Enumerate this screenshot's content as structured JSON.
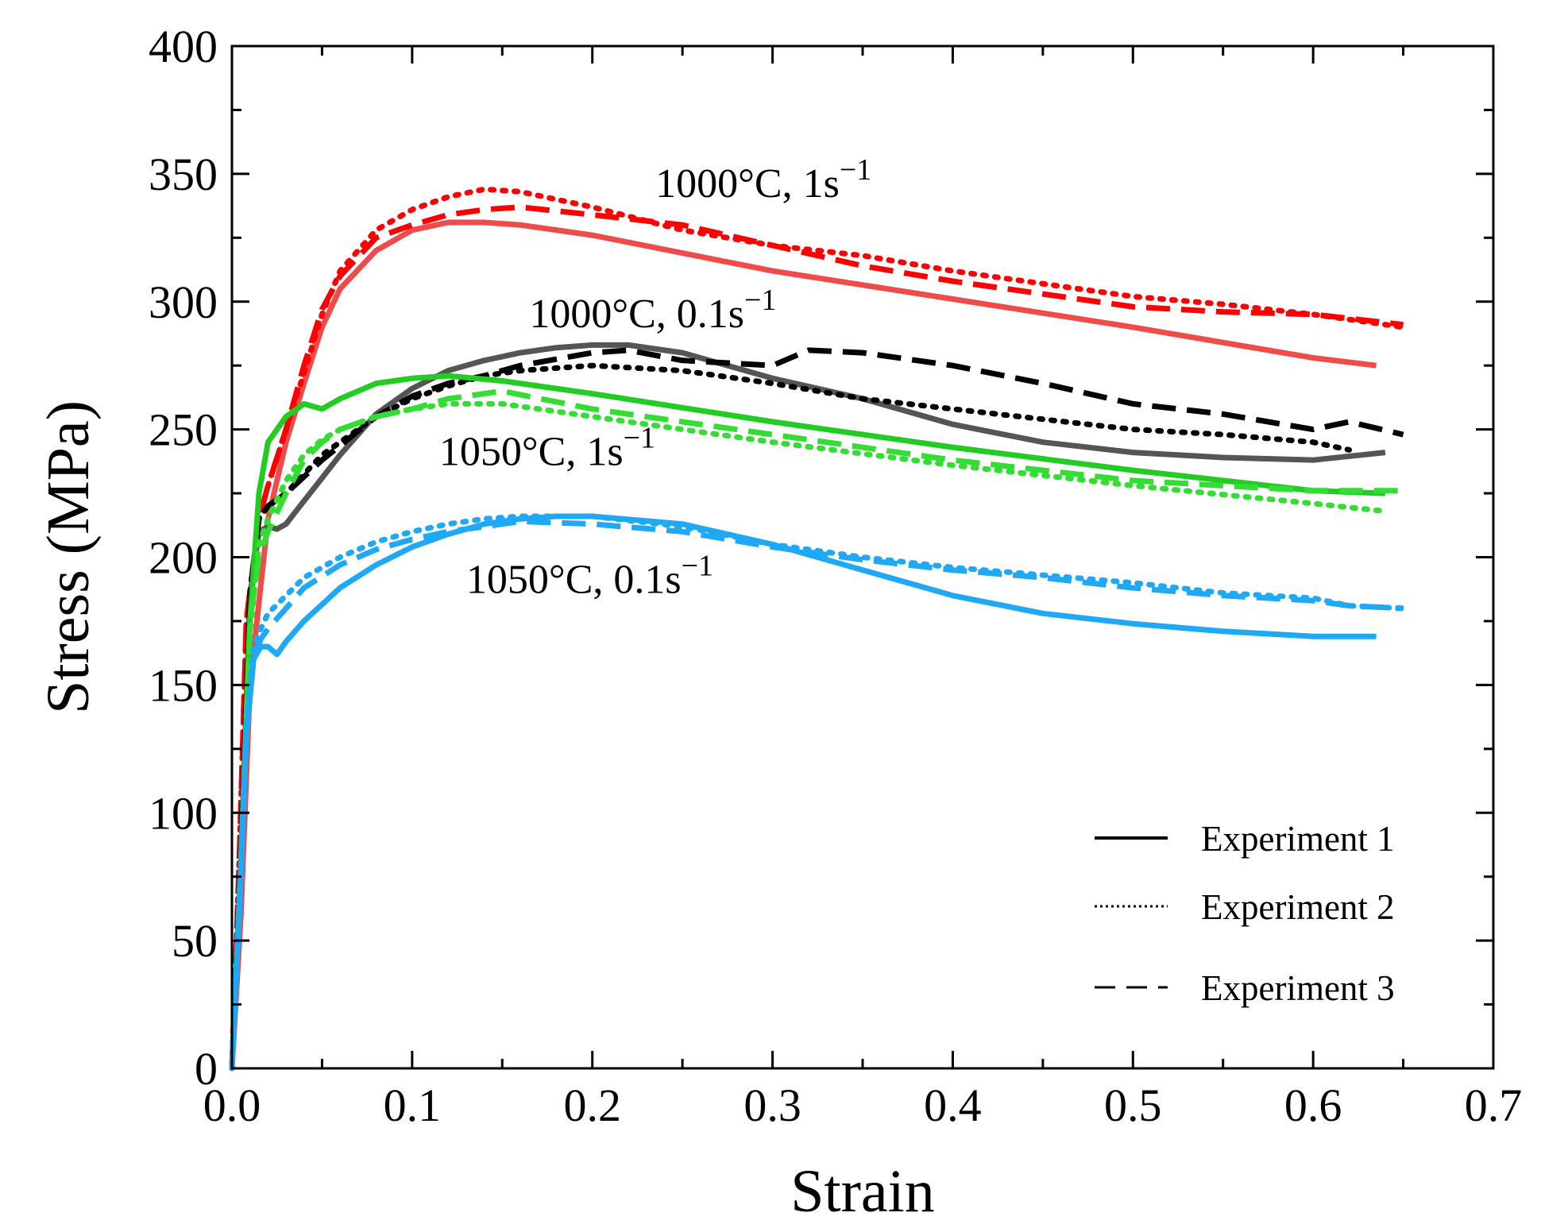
{
  "chart_data": {
    "type": "line",
    "title": "",
    "xlabel": "Strain",
    "ylabel": "Stress (MPa)",
    "xlim": [
      0,
      0.7
    ],
    "ylim": [
      0,
      400
    ],
    "x_ticks": [
      "0.0",
      "0.1",
      "0.2",
      "0.3",
      "0.4",
      "0.5",
      "0.6",
      "0.7"
    ],
    "y_ticks": [
      "0",
      "50",
      "100",
      "150",
      "200",
      "250",
      "300",
      "350",
      "400"
    ],
    "grid": false,
    "legend_position": "bottom-right",
    "legend": [
      {
        "label": "Experiment 1",
        "style": "solid"
      },
      {
        "label": "Experiment 2",
        "style": "dotted"
      },
      {
        "label": "Experiment 3",
        "style": "dashed"
      }
    ],
    "annotations": [
      {
        "base": "1000°C, 1s",
        "sup": "−1",
        "x": 0.235,
        "y": 341
      },
      {
        "base": "1000°C, 0.1s",
        "sup": "−1",
        "x": 0.165,
        "y": 290
      },
      {
        "base": "1050°C, 1s",
        "sup": "−1",
        "x": 0.115,
        "y": 236
      },
      {
        "base": "1050°C, 0.1s",
        "sup": "−1",
        "x": 0.13,
        "y": 186
      }
    ],
    "series": [
      {
        "group": "1000°C, 1s−1",
        "experiment": 1,
        "color": "#ef4b4b",
        "style": "solid",
        "x": [
          0,
          0.005,
          0.01,
          0.02,
          0.03,
          0.04,
          0.05,
          0.06,
          0.08,
          0.1,
          0.12,
          0.14,
          0.16,
          0.2,
          0.3,
          0.4,
          0.5,
          0.6,
          0.635
        ],
        "y": [
          0,
          60,
          150,
          215,
          245,
          268,
          290,
          305,
          320,
          328,
          331,
          331,
          330,
          326,
          312,
          301,
          290,
          278,
          275
        ]
      },
      {
        "group": "1000°C, 1s−1",
        "experiment": 2,
        "color": "#ff0000",
        "style": "dotted",
        "x": [
          0,
          0.004,
          0.008,
          0.015,
          0.02,
          0.03,
          0.04,
          0.05,
          0.06,
          0.08,
          0.1,
          0.12,
          0.14,
          0.16,
          0.2,
          0.25,
          0.3,
          0.35,
          0.4,
          0.5,
          0.55,
          0.6,
          0.65
        ],
        "y": [
          0,
          80,
          175,
          215,
          228,
          250,
          272,
          295,
          312,
          328,
          336,
          341,
          344,
          343,
          337,
          328,
          322,
          318,
          312,
          302,
          299,
          295,
          290
        ]
      },
      {
        "group": "1000°C, 1s−1",
        "experiment": 3,
        "color": "#ff0000",
        "style": "dashed",
        "x": [
          0,
          0.004,
          0.008,
          0.015,
          0.02,
          0.03,
          0.04,
          0.05,
          0.06,
          0.08,
          0.1,
          0.12,
          0.14,
          0.16,
          0.2,
          0.25,
          0.3,
          0.35,
          0.4,
          0.5,
          0.55,
          0.6,
          0.65
        ],
        "y": [
          0,
          80,
          175,
          215,
          228,
          250,
          275,
          297,
          310,
          325,
          330,
          334,
          336,
          337,
          334,
          330,
          322,
          314,
          308,
          298,
          296,
          295,
          291
        ]
      },
      {
        "group": "1000°C, 0.1s−1",
        "experiment": 1,
        "color": "#555555",
        "style": "solid",
        "x": [
          0,
          0.005,
          0.01,
          0.015,
          0.02,
          0.025,
          0.03,
          0.04,
          0.06,
          0.08,
          0.1,
          0.12,
          0.14,
          0.16,
          0.18,
          0.2,
          0.22,
          0.25,
          0.3,
          0.35,
          0.4,
          0.45,
          0.5,
          0.55,
          0.6,
          0.64
        ],
        "y": [
          0,
          80,
          185,
          210,
          212,
          211,
          213,
          222,
          240,
          256,
          266,
          273,
          277,
          280,
          282,
          283,
          283,
          280,
          270,
          262,
          252,
          245,
          241,
          239,
          238,
          241
        ]
      },
      {
        "group": "1000°C, 0.1s−1",
        "experiment": 2,
        "color": "#000000",
        "style": "dotted",
        "x": [
          0,
          0.005,
          0.01,
          0.015,
          0.02,
          0.03,
          0.05,
          0.08,
          0.1,
          0.12,
          0.14,
          0.16,
          0.2,
          0.25,
          0.3,
          0.35,
          0.4,
          0.45,
          0.5,
          0.55,
          0.6,
          0.62
        ],
        "y": [
          0,
          85,
          185,
          215,
          220,
          225,
          240,
          255,
          262,
          267,
          271,
          273,
          275,
          273,
          268,
          262,
          258,
          254,
          250,
          248,
          245,
          242
        ]
      },
      {
        "group": "1000°C, 0.1s−1",
        "experiment": 3,
        "color": "#000000",
        "style": "dashed",
        "x": [
          0,
          0.005,
          0.01,
          0.015,
          0.02,
          0.03,
          0.05,
          0.08,
          0.1,
          0.12,
          0.14,
          0.16,
          0.2,
          0.22,
          0.25,
          0.3,
          0.32,
          0.35,
          0.4,
          0.45,
          0.5,
          0.55,
          0.6,
          0.62,
          0.65
        ],
        "y": [
          0,
          85,
          185,
          215,
          220,
          225,
          238,
          255,
          263,
          268,
          271,
          275,
          280,
          281,
          277,
          275,
          281,
          280,
          275,
          268,
          260,
          256,
          250,
          253,
          248
        ]
      },
      {
        "group": "1050°C, 1s−1",
        "experiment": 1,
        "color": "#22cc22",
        "style": "solid",
        "x": [
          0,
          0.005,
          0.01,
          0.015,
          0.02,
          0.03,
          0.04,
          0.05,
          0.06,
          0.08,
          0.1,
          0.12,
          0.15,
          0.2,
          0.3,
          0.4,
          0.5,
          0.6,
          0.64
        ],
        "y": [
          0,
          80,
          175,
          225,
          245,
          255,
          260,
          258,
          262,
          268,
          270,
          271,
          269,
          264,
          253,
          243,
          234,
          226,
          225
        ]
      },
      {
        "group": "1050°C, 1s−1",
        "experiment": 2,
        "color": "#33dd33",
        "style": "dotted",
        "x": [
          0,
          0.005,
          0.01,
          0.015,
          0.02,
          0.03,
          0.04,
          0.05,
          0.06,
          0.08,
          0.1,
          0.12,
          0.15,
          0.2,
          0.3,
          0.4,
          0.5,
          0.6,
          0.64
        ],
        "y": [
          0,
          80,
          170,
          205,
          215,
          230,
          240,
          246,
          250,
          255,
          258,
          260,
          260,
          255,
          245,
          236,
          228,
          221,
          218
        ]
      },
      {
        "group": "1050°C, 1s−1",
        "experiment": 3,
        "color": "#33dd33",
        "style": "dashed",
        "x": [
          0,
          0.005,
          0.01,
          0.015,
          0.02,
          0.03,
          0.04,
          0.05,
          0.06,
          0.08,
          0.1,
          0.12,
          0.15,
          0.2,
          0.3,
          0.4,
          0.5,
          0.6,
          0.65
        ],
        "y": [
          0,
          80,
          175,
          200,
          210,
          225,
          238,
          245,
          250,
          255,
          258,
          262,
          265,
          258,
          248,
          238,
          230,
          226,
          226
        ]
      },
      {
        "group": "1050°C, 0.1s−1",
        "experiment": 1,
        "color": "#1ea8f5",
        "style": "solid",
        "x": [
          0,
          0.004,
          0.008,
          0.012,
          0.016,
          0.02,
          0.025,
          0.03,
          0.04,
          0.06,
          0.08,
          0.1,
          0.12,
          0.14,
          0.16,
          0.18,
          0.2,
          0.25,
          0.3,
          0.35,
          0.4,
          0.45,
          0.5,
          0.55,
          0.6,
          0.635
        ],
        "y": [
          0,
          60,
          130,
          160,
          165,
          165,
          162,
          167,
          175,
          188,
          197,
          204,
          209,
          213,
          215,
          216,
          216,
          213,
          205,
          195,
          185,
          178,
          174,
          171,
          169,
          169
        ]
      },
      {
        "group": "1050°C, 0.1s−1",
        "experiment": 2,
        "color": "#1ea8f5",
        "style": "dotted",
        "x": [
          0,
          0.004,
          0.008,
          0.012,
          0.016,
          0.02,
          0.03,
          0.04,
          0.06,
          0.08,
          0.1,
          0.12,
          0.14,
          0.16,
          0.2,
          0.25,
          0.3,
          0.35,
          0.4,
          0.45,
          0.5,
          0.55,
          0.6,
          0.62,
          0.65
        ],
        "y": [
          0,
          65,
          135,
          165,
          172,
          178,
          185,
          192,
          200,
          206,
          210,
          213,
          215,
          216,
          216,
          212,
          205,
          200,
          196,
          193,
          190,
          186,
          184,
          181,
          180
        ]
      },
      {
        "group": "1050°C, 0.1s−1",
        "experiment": 3,
        "color": "#1ea8f5",
        "style": "dashed",
        "x": [
          0,
          0.004,
          0.008,
          0.012,
          0.016,
          0.02,
          0.03,
          0.04,
          0.06,
          0.08,
          0.1,
          0.12,
          0.14,
          0.16,
          0.2,
          0.25,
          0.3,
          0.35,
          0.4,
          0.45,
          0.5,
          0.55,
          0.6,
          0.62,
          0.65
        ],
        "y": [
          0,
          60,
          130,
          160,
          168,
          172,
          180,
          188,
          197,
          203,
          207,
          210,
          212,
          214,
          213,
          210,
          204,
          199,
          195,
          192,
          188,
          185,
          183,
          181,
          180
        ]
      }
    ]
  }
}
